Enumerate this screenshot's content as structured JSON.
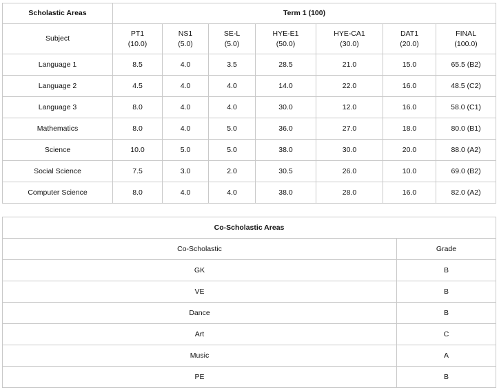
{
  "scholastic": {
    "area_label": "Scholastic Areas",
    "term_label": "Term 1 (100)",
    "subject_header": "Subject",
    "columns": [
      {
        "name": "PT1",
        "max": "(10.0)"
      },
      {
        "name": "NS1",
        "max": "(5.0)"
      },
      {
        "name": "SE-L",
        "max": "(5.0)"
      },
      {
        "name": "HYE-E1",
        "max": "(50.0)"
      },
      {
        "name": "HYE-CA1",
        "max": "(30.0)"
      },
      {
        "name": "DAT1",
        "max": "(20.0)"
      },
      {
        "name": "FINAL",
        "max": "(100.0)"
      }
    ],
    "rows": [
      {
        "subject": "Language 1",
        "values": [
          "8.5",
          "4.0",
          "3.5",
          "28.5",
          "21.0",
          "15.0",
          "65.5 (B2)"
        ]
      },
      {
        "subject": "Language 2",
        "values": [
          "4.5",
          "4.0",
          "4.0",
          "14.0",
          "22.0",
          "16.0",
          "48.5 (C2)"
        ]
      },
      {
        "subject": "Language 3",
        "values": [
          "8.0",
          "4.0",
          "4.0",
          "30.0",
          "12.0",
          "16.0",
          "58.0 (C1)"
        ]
      },
      {
        "subject": "Mathematics",
        "values": [
          "8.0",
          "4.0",
          "5.0",
          "36.0",
          "27.0",
          "18.0",
          "80.0 (B1)"
        ]
      },
      {
        "subject": "Science",
        "values": [
          "10.0",
          "5.0",
          "5.0",
          "38.0",
          "30.0",
          "20.0",
          "88.0 (A2)"
        ]
      },
      {
        "subject": "Social Science",
        "values": [
          "7.5",
          "3.0",
          "2.0",
          "30.5",
          "26.0",
          "10.0",
          "69.0 (B2)"
        ]
      },
      {
        "subject": "Computer Science",
        "values": [
          "8.0",
          "4.0",
          "4.0",
          "38.0",
          "28.0",
          "16.0",
          "82.0 (A2)"
        ]
      }
    ]
  },
  "coscholastic": {
    "title": "Co-Scholastic Areas",
    "col_activity": "Co-Scholastic",
    "col_grade": "Grade",
    "rows": [
      {
        "activity": "GK",
        "grade": "B"
      },
      {
        "activity": "VE",
        "grade": "B"
      },
      {
        "activity": "Dance",
        "grade": "B"
      },
      {
        "activity": "Art",
        "grade": "C"
      },
      {
        "activity": "Music",
        "grade": "A"
      },
      {
        "activity": "PE",
        "grade": "B"
      }
    ]
  }
}
